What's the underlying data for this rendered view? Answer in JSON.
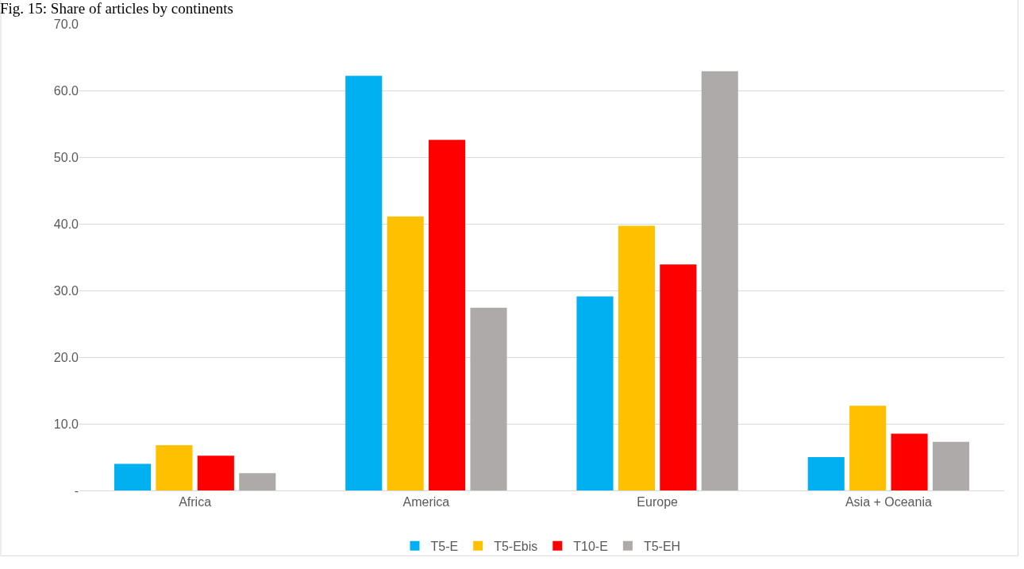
{
  "chart_data": {
    "type": "bar",
    "title": "Fig. 15: Share of articles by continents",
    "categories": [
      "Africa",
      "America",
      "Europe",
      "Asia + Oceania"
    ],
    "series": [
      {
        "name": "T5-E",
        "color": "#00b0f0",
        "values": [
          4.0,
          62.2,
          29.1,
          5.0
        ]
      },
      {
        "name": "T5-Ebis",
        "color": "#ffc000",
        "values": [
          6.8,
          41.1,
          39.7,
          12.7
        ]
      },
      {
        "name": "T10-E",
        "color": "#ff0000",
        "values": [
          5.2,
          52.6,
          33.9,
          8.5
        ]
      },
      {
        "name": "T5-EH",
        "color": "#aeaaaa",
        "values": [
          2.6,
          27.4,
          62.9,
          7.3
        ]
      }
    ],
    "ylim": [
      0,
      70
    ],
    "yticks": [
      {
        "value": 0,
        "label": "-"
      },
      {
        "value": 10,
        "label": "10.0"
      },
      {
        "value": 20,
        "label": "20.0"
      },
      {
        "value": 30,
        "label": "30.0"
      },
      {
        "value": 40,
        "label": "40.0"
      },
      {
        "value": 50,
        "label": "50.0"
      },
      {
        "value": 60,
        "label": "60.0"
      },
      {
        "value": 70,
        "label": "70.0"
      }
    ],
    "grid": "y",
    "legend": "bottom"
  }
}
